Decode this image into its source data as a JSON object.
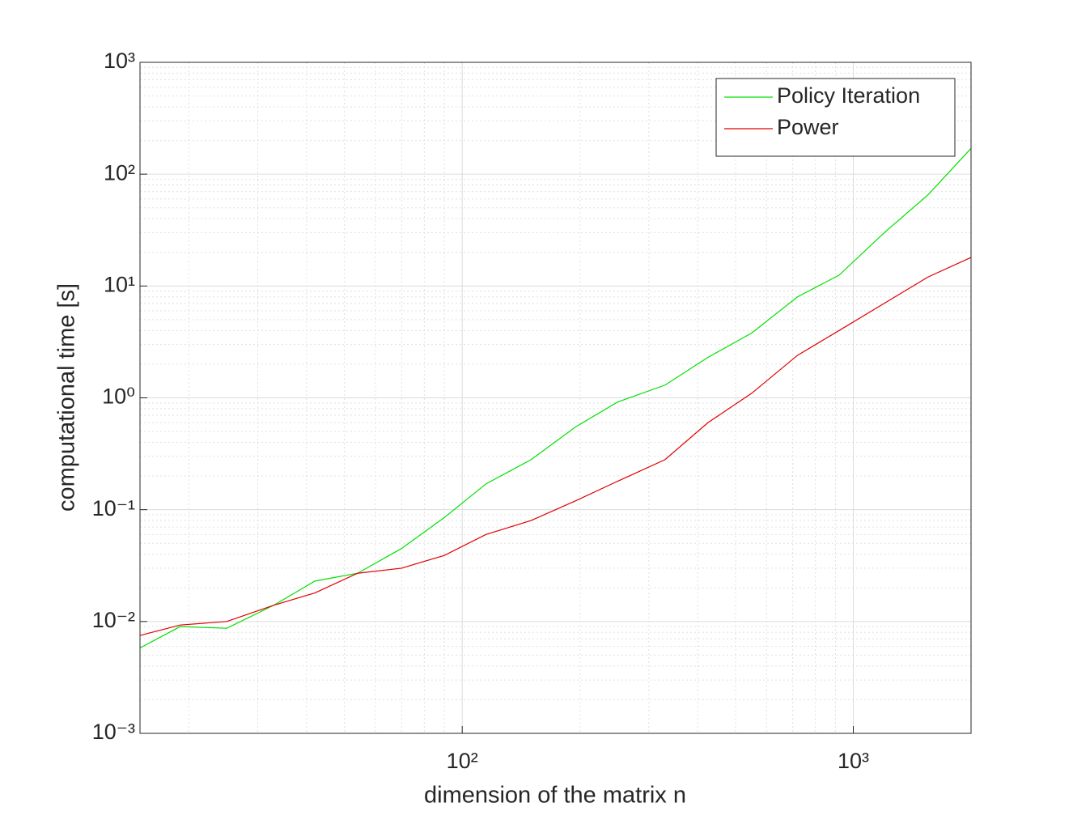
{
  "chart_data": {
    "type": "line",
    "xlabel": "dimension of the matrix n",
    "ylabel": "computational time [s]",
    "x": [
      15,
      19,
      25,
      33,
      42,
      54,
      70,
      90,
      115,
      150,
      195,
      250,
      330,
      425,
      550,
      720,
      920,
      1200,
      1550,
      2000
    ],
    "series": [
      {
        "name": "Policy Iteration",
        "color": "#00e000",
        "values": [
          0.0058,
          0.009,
          0.0087,
          0.014,
          0.023,
          0.027,
          0.045,
          0.085,
          0.17,
          0.28,
          0.55,
          0.92,
          1.3,
          2.3,
          3.8,
          8,
          12.5,
          30,
          65,
          170
        ]
      },
      {
        "name": "Power",
        "color": "#e00000",
        "values": [
          0.0075,
          0.0093,
          0.01,
          0.014,
          0.018,
          0.027,
          0.03,
          0.039,
          0.06,
          0.08,
          0.12,
          0.18,
          0.28,
          0.6,
          1.1,
          2.4,
          4.0,
          7,
          12,
          18
        ]
      }
    ],
    "xlog": true,
    "ylog": true,
    "xlim": [
      15,
      2000
    ],
    "xticks": [
      {
        "value": 100,
        "label": "10²"
      },
      {
        "value": 1000,
        "label": "10³"
      }
    ],
    "ylim": [
      0.001,
      1000
    ],
    "yticks": [
      {
        "value": 0.001,
        "label": "10⁻³"
      },
      {
        "value": 0.01,
        "label": "10⁻²"
      },
      {
        "value": 0.1,
        "label": "10⁻¹"
      },
      {
        "value": 1,
        "label": "10⁰"
      },
      {
        "value": 10,
        "label": "10¹"
      },
      {
        "value": 100,
        "label": "10²"
      },
      {
        "value": 1000,
        "label": "10³"
      }
    ],
    "grid": true,
    "minor_grid": true,
    "legend": "northeast"
  }
}
